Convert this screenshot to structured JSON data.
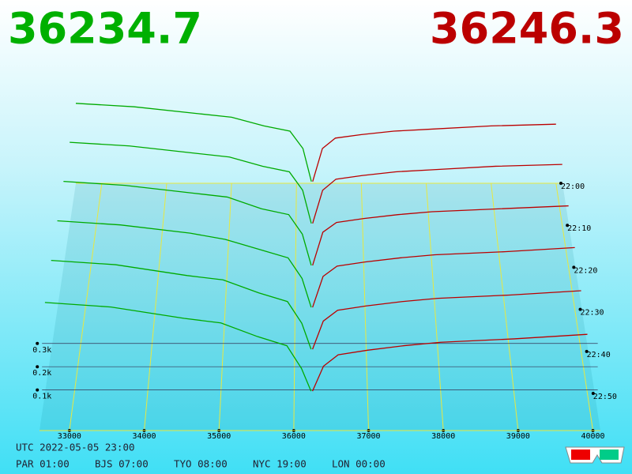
{
  "header": {
    "bid": "36234.7",
    "ask": "36246.3"
  },
  "chart_data": {
    "type": "depth3d",
    "xlim": [
      32600,
      40100
    ],
    "xticks": [
      33000,
      34000,
      35000,
      36000,
      37000,
      38000,
      39000,
      40000
    ],
    "depth_ticks": [
      {
        "value": 100,
        "label": "0.1k"
      },
      {
        "value": 200,
        "label": "0.2k"
      },
      {
        "value": 300,
        "label": "0.3k"
      }
    ],
    "time_ticks": [
      "22:00",
      "22:10",
      "22:20",
      "22:30",
      "22:40",
      "22:50"
    ],
    "bids": {
      "color": "#00aa00",
      "x": [
        32600,
        33500,
        34500,
        35000,
        35500,
        35900,
        36100,
        36230
      ],
      "snapshots": [
        [
          460,
          440,
          400,
          380,
          330,
          300,
          200,
          10
        ],
        [
          450,
          430,
          390,
          370,
          320,
          290,
          190,
          10
        ],
        [
          440,
          420,
          380,
          360,
          300,
          270,
          170,
          10
        ],
        [
          430,
          410,
          370,
          340,
          290,
          250,
          150,
          10
        ],
        [
          420,
          400,
          350,
          330,
          270,
          230,
          130,
          10
        ],
        [
          400,
          380,
          330,
          310,
          250,
          210,
          110,
          10
        ]
      ]
    },
    "asks": {
      "color": "#bb0000",
      "x": [
        36250,
        36400,
        36600,
        37000,
        37500,
        38000,
        39000,
        40000
      ],
      "snapshots": [
        [
          10,
          200,
          260,
          280,
          300,
          310,
          330,
          340
        ],
        [
          10,
          190,
          250,
          270,
          290,
          300,
          320,
          330
        ],
        [
          10,
          180,
          230,
          250,
          270,
          285,
          300,
          315
        ],
        [
          10,
          160,
          210,
          230,
          250,
          265,
          280,
          300
        ],
        [
          10,
          140,
          190,
          210,
          230,
          245,
          260,
          280
        ],
        [
          10,
          120,
          170,
          190,
          210,
          225,
          240,
          260
        ]
      ]
    }
  },
  "footer": {
    "utc": "UTC 2022-05-05 23:00",
    "clocks": [
      "PAR 01:00",
      "BJS 07:00",
      "TYO 08:00",
      "NYC 19:00",
      "LON 00:00"
    ]
  }
}
